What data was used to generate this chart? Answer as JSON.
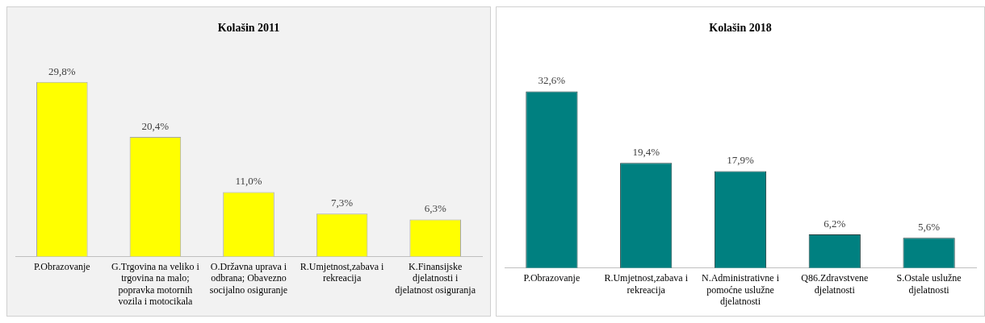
{
  "chart_data": [
    {
      "type": "bar",
      "title": "Kolašin 2011",
      "categories": [
        "P.Obrazovanje",
        "G.Trgovina na veliko i trgovina na malo; popravka motornih vozila i motocikala",
        "O.Državna uprava i odbrana; Obavezno socijalno osiguranje",
        "R.Umjetnost,zabava i rekreacija",
        "K.Finansijske djelatnosti i djelatnost osiguranja"
      ],
      "values": [
        29.8,
        20.4,
        11.0,
        7.3,
        6.3
      ],
      "color": "#ffff00",
      "value_labels": [
        "29,8%",
        "20,4%",
        "11,0%",
        "7,3%",
        "6,3%"
      ]
    },
    {
      "type": "bar",
      "title": "Kolašin 2018",
      "categories": [
        "P.Obrazovanje",
        "R.Umjetnost,zabava i rekreacija",
        "N.Administrativne i pomoćne uslužne djelatnosti",
        "Q86.Zdravstvene djelatnosti",
        "S.Ostale uslužne djelatnosti"
      ],
      "values": [
        32.6,
        19.4,
        17.9,
        6.2,
        5.6
      ],
      "color": "#008080",
      "value_labels": [
        "32,6%",
        "19,4%",
        "17,9%",
        "6,2%",
        "5,6%"
      ]
    }
  ]
}
